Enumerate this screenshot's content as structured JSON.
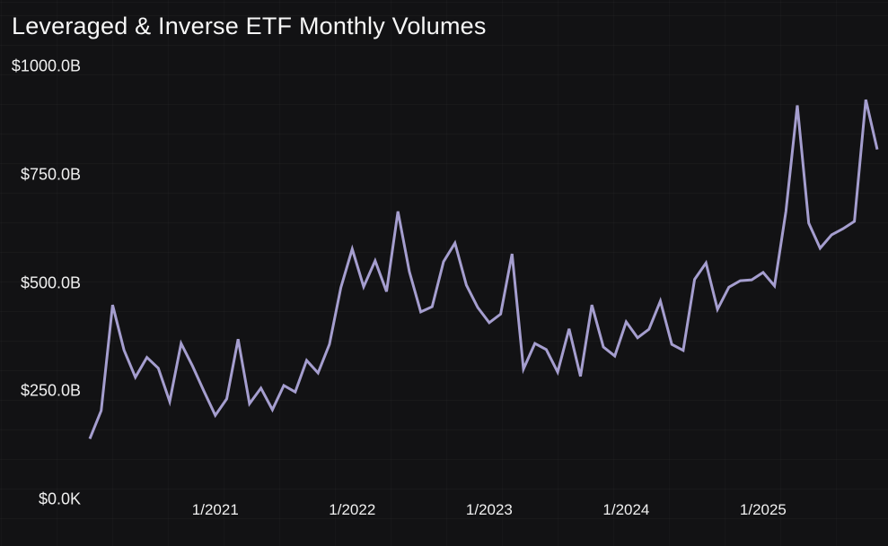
{
  "header": {
    "title": "Leveraged & Inverse ETF Monthly Volumes"
  },
  "chart_data": {
    "type": "line",
    "title": "Leveraged & Inverse ETF Monthly Volumes",
    "unit": "$ billions (monthly volume)",
    "x": [
      "2/2020",
      "3/2020",
      "4/2020",
      "5/2020",
      "6/2020",
      "7/2020",
      "8/2020",
      "9/2020",
      "10/2020",
      "11/2020",
      "12/2020",
      "1/2021",
      "2/2021",
      "3/2021",
      "4/2021",
      "5/2021",
      "6/2021",
      "7/2021",
      "8/2021",
      "9/2021",
      "10/2021",
      "11/2021",
      "12/2021",
      "1/2022",
      "2/2022",
      "3/2022",
      "4/2022",
      "5/2022",
      "6/2022",
      "7/2022",
      "8/2022",
      "9/2022",
      "10/2022",
      "11/2022",
      "12/2022",
      "1/2023",
      "2/2023",
      "3/2023",
      "4/2023",
      "5/2023",
      "6/2023",
      "7/2023",
      "8/2023",
      "9/2023",
      "10/2023",
      "11/2023",
      "12/2023",
      "1/2024",
      "2/2024",
      "3/2024",
      "4/2024",
      "5/2024",
      "6/2024",
      "7/2024",
      "8/2024",
      "9/2024",
      "10/2024",
      "11/2024",
      "12/2024",
      "1/2025",
      "2/2025",
      "3/2025",
      "4/2025",
      "5/2025",
      "6/2025",
      "7/2025",
      "8/2025",
      "9/2025",
      "10/2025",
      "11/2025"
    ],
    "values": [
      140,
      205,
      449,
      345,
      282,
      328,
      303,
      226,
      360,
      308,
      250,
      194,
      232,
      370,
      221,
      257,
      207,
      263,
      248,
      321,
      292,
      358,
      489,
      578,
      491,
      551,
      480,
      665,
      526,
      433,
      445,
      549,
      592,
      495,
      443,
      408,
      428,
      567,
      301,
      360,
      346,
      294,
      394,
      284,
      449,
      352,
      331,
      410,
      373,
      393,
      458,
      358,
      344,
      508,
      546,
      439,
      490,
      505,
      507,
      524,
      493,
      665,
      910,
      638,
      580,
      611,
      625,
      642,
      923,
      808
    ],
    "y_ticks": [
      {
        "label": "$1000.0B",
        "value": 1000
      },
      {
        "label": "$750.0B",
        "value": 750
      },
      {
        "label": "$500.0B",
        "value": 500
      },
      {
        "label": "$250.0B",
        "value": 250
      },
      {
        "label": "$0.0K",
        "value": 0
      }
    ],
    "x_ticks": [
      "1/2021",
      "1/2022",
      "1/2023",
      "1/2024",
      "1/2025"
    ],
    "ylim": [
      0,
      1000
    ],
    "grid": "off",
    "legend": "none",
    "line_color": "#a59ecf",
    "background_color": "#121214",
    "text_color": "#f0f0f0"
  }
}
